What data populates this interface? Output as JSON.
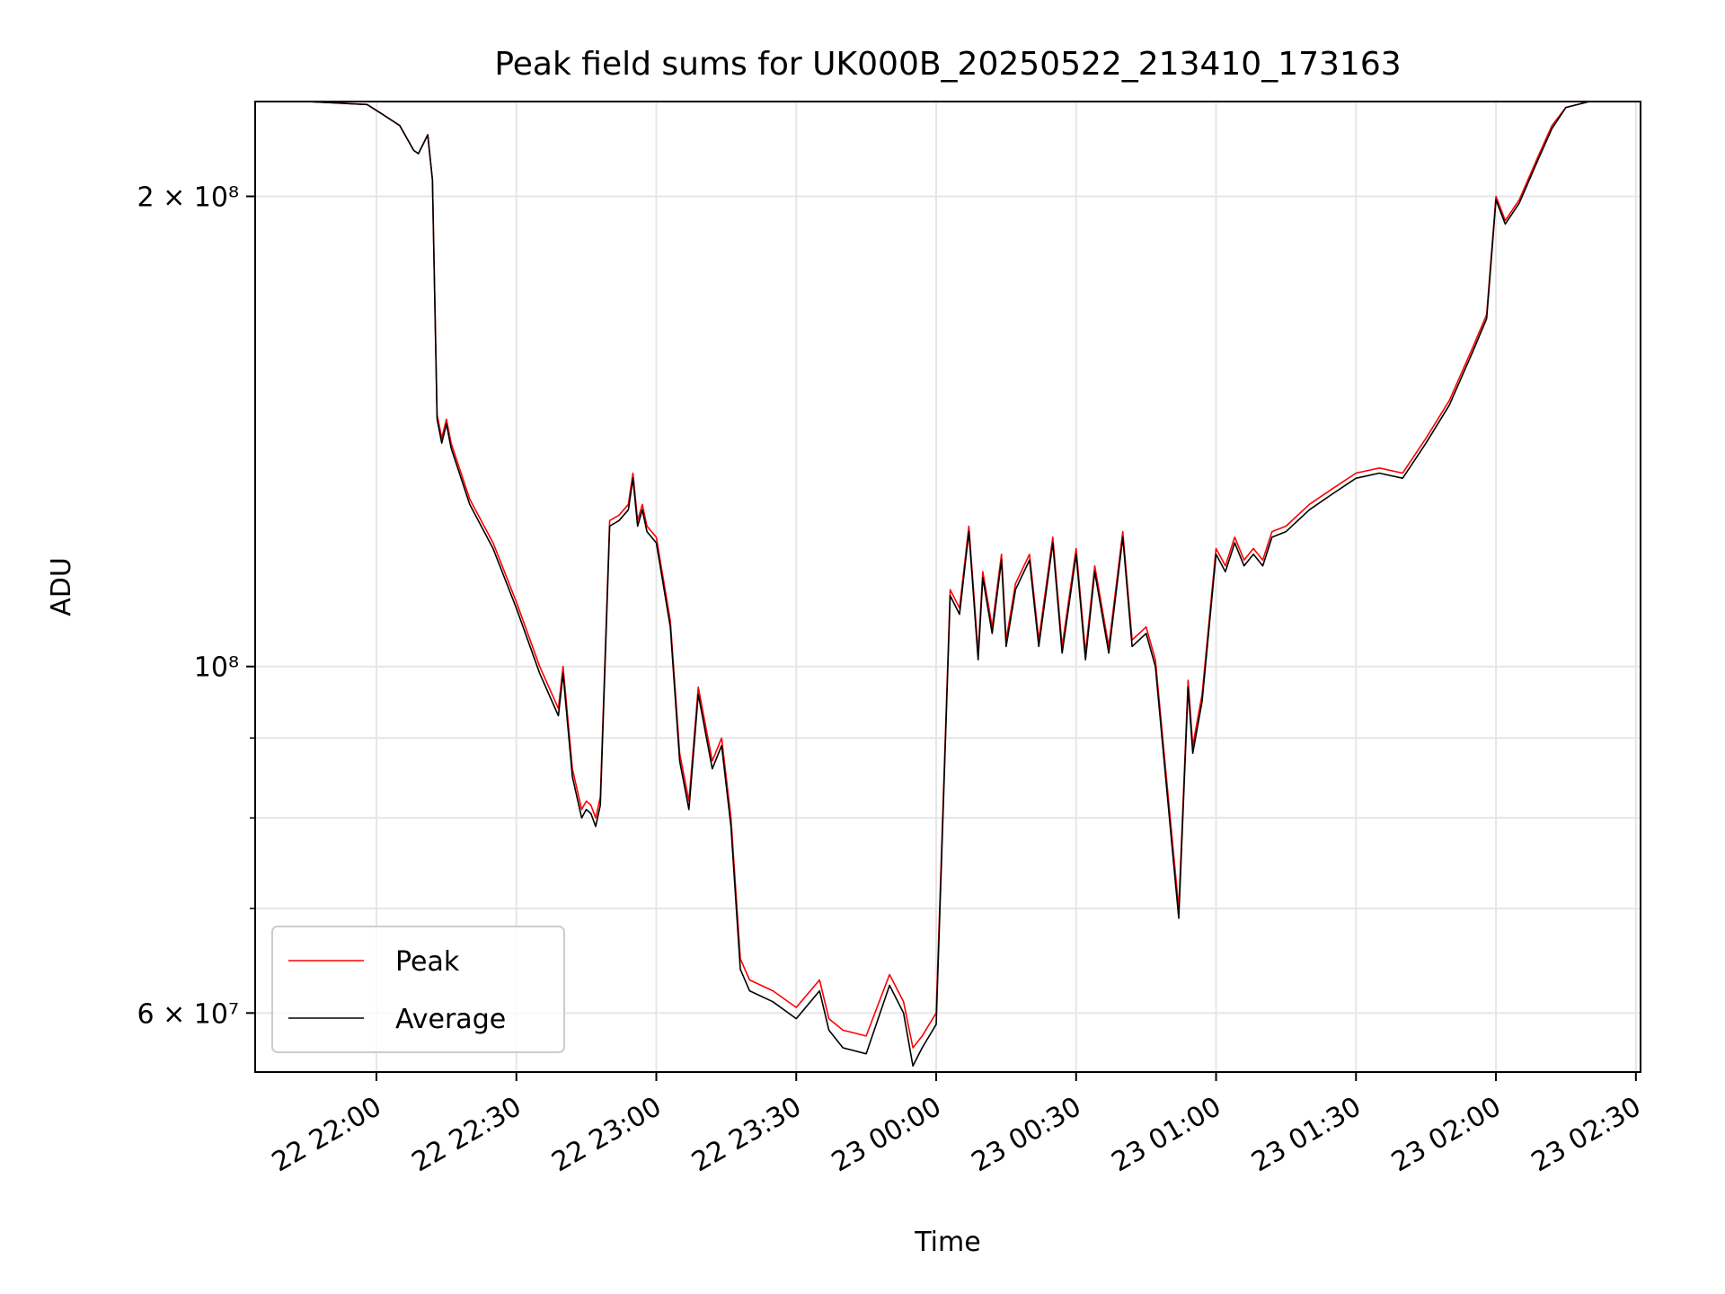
{
  "chart_data": {
    "type": "line",
    "title": "Peak field sums for UK000B_20250522_213410_173163",
    "xlabel": "Time",
    "ylabel": "ADU",
    "y_scale": "log",
    "ylim": [
      55000000,
      230000000
    ],
    "xlim": [
      "2025-05-22T21:34",
      "2025-05-23T02:31"
    ],
    "grid": true,
    "legend_position": "lower-left",
    "x_tick_labels": [
      "22 22:00",
      "22 22:30",
      "22 23:00",
      "22 23:30",
      "23 00:00",
      "23 00:30",
      "23 01:00",
      "23 01:30",
      "23 02:00",
      "23 02:30"
    ],
    "x_ticks": [
      "2025-05-22T22:00",
      "2025-05-22T22:30",
      "2025-05-22T23:00",
      "2025-05-22T23:30",
      "2025-05-23T00:00",
      "2025-05-23T00:30",
      "2025-05-23T01:00",
      "2025-05-23T01:30",
      "2025-05-23T02:00",
      "2025-05-23T02:30"
    ],
    "y_major_ticks": [
      {
        "value": 60000000,
        "label": "6 × 10⁷"
      },
      {
        "value": 100000000,
        "label": "10⁸"
      },
      {
        "value": 200000000,
        "label": "2 × 10⁸"
      }
    ],
    "y_minor_ticks": [
      70000000,
      80000000,
      90000000
    ],
    "series": [
      {
        "name": "Peak",
        "color": "#ff0000",
        "x": [
          "2025-05-22T21:34",
          "2025-05-22T21:45",
          "2025-05-22T21:58",
          "2025-05-22T22:01",
          "2025-05-22T22:05",
          "2025-05-22T22:08",
          "2025-05-22T22:09",
          "2025-05-22T22:11",
          "2025-05-22T22:12",
          "2025-05-22T22:13",
          "2025-05-22T22:14",
          "2025-05-22T22:15",
          "2025-05-22T22:16",
          "2025-05-22T22:20",
          "2025-05-22T22:25",
          "2025-05-22T22:30",
          "2025-05-22T22:35",
          "2025-05-22T22:39",
          "2025-05-22T22:40",
          "2025-05-22T22:42",
          "2025-05-22T22:44",
          "2025-05-22T22:45",
          "2025-05-22T22:46",
          "2025-05-22T22:47",
          "2025-05-22T22:48",
          "2025-05-22T22:50",
          "2025-05-22T22:52",
          "2025-05-22T22:54",
          "2025-05-22T22:55",
          "2025-05-22T22:56",
          "2025-05-22T22:57",
          "2025-05-22T22:58",
          "2025-05-22T23:00",
          "2025-05-22T23:03",
          "2025-05-22T23:05",
          "2025-05-22T23:07",
          "2025-05-22T23:09",
          "2025-05-22T23:12",
          "2025-05-22T23:14",
          "2025-05-22T23:16",
          "2025-05-22T23:18",
          "2025-05-22T23:20",
          "2025-05-22T23:25",
          "2025-05-22T23:30",
          "2025-05-22T23:35",
          "2025-05-22T23:37",
          "2025-05-22T23:40",
          "2025-05-22T23:45",
          "2025-05-22T23:50",
          "2025-05-22T23:53",
          "2025-05-22T23:55",
          "2025-05-22T23:57",
          "2025-05-23T00:00",
          "2025-05-23T00:03",
          "2025-05-23T00:05",
          "2025-05-23T00:07",
          "2025-05-23T00:09",
          "2025-05-23T00:10",
          "2025-05-23T00:12",
          "2025-05-23T00:14",
          "2025-05-23T00:15",
          "2025-05-23T00:17",
          "2025-05-23T00:20",
          "2025-05-23T00:22",
          "2025-05-23T00:25",
          "2025-05-23T00:27",
          "2025-05-23T00:30",
          "2025-05-23T00:32",
          "2025-05-23T00:34",
          "2025-05-23T00:37",
          "2025-05-23T00:40",
          "2025-05-23T00:42",
          "2025-05-23T00:45",
          "2025-05-23T00:47",
          "2025-05-23T00:50",
          "2025-05-23T00:52",
          "2025-05-23T00:54",
          "2025-05-23T00:55",
          "2025-05-23T00:57",
          "2025-05-23T01:00",
          "2025-05-23T01:02",
          "2025-05-23T01:04",
          "2025-05-23T01:06",
          "2025-05-23T01:08",
          "2025-05-23T01:10",
          "2025-05-23T01:12",
          "2025-05-23T01:15",
          "2025-05-23T01:20",
          "2025-05-23T01:25",
          "2025-05-23T01:30",
          "2025-05-23T01:35",
          "2025-05-23T01:40",
          "2025-05-23T01:45",
          "2025-05-23T01:50",
          "2025-05-23T01:55",
          "2025-05-23T01:58",
          "2025-05-23T02:00",
          "2025-05-23T02:02",
          "2025-05-23T02:05",
          "2025-05-23T02:09",
          "2025-05-23T02:12",
          "2025-05-23T02:15",
          "2025-05-23T02:20",
          "2025-05-23T02:25",
          "2025-05-23T02:31"
        ],
        "values": [
          230000000,
          230000000,
          229000000,
          226000000,
          222000000,
          214000000,
          213000000,
          219000000,
          205000000,
          145000000,
          140000000,
          144000000,
          139000000,
          128000000,
          120000000,
          110000000,
          100000000,
          94000000,
          100000000,
          86000000,
          81000000,
          82000000,
          81500000,
          80000000,
          82500000,
          124000000,
          125000000,
          127000000,
          133000000,
          124000000,
          127000000,
          123000000,
          121000000,
          107000000,
          88000000,
          82000000,
          97000000,
          87000000,
          90000000,
          80000000,
          65000000,
          63000000,
          62000000,
          60500000,
          63000000,
          59500000,
          58500000,
          58000000,
          63500000,
          61000000,
          57000000,
          58000000,
          60000000,
          112000000,
          109000000,
          123000000,
          102000000,
          115000000,
          106000000,
          118000000,
          104000000,
          113000000,
          118000000,
          104000000,
          121000000,
          103000000,
          119000000,
          102000000,
          116000000,
          103000000,
          122000000,
          104000000,
          106000000,
          101000000,
          81000000,
          70000000,
          98000000,
          89000000,
          96000000,
          119000000,
          116000000,
          121000000,
          117000000,
          119000000,
          117000000,
          122000000,
          123000000,
          127000000,
          130000000,
          133000000,
          134000000,
          133000000,
          140000000,
          148000000,
          160000000,
          168000000,
          200000000,
          193000000,
          199000000,
          212000000,
          222000000,
          228000000,
          230000000,
          230000000,
          230000000
        ]
      },
      {
        "name": "Average",
        "color": "#000000",
        "x": [
          "2025-05-22T21:34",
          "2025-05-22T21:45",
          "2025-05-22T21:58",
          "2025-05-22T22:01",
          "2025-05-22T22:05",
          "2025-05-22T22:08",
          "2025-05-22T22:09",
          "2025-05-22T22:11",
          "2025-05-22T22:12",
          "2025-05-22T22:13",
          "2025-05-22T22:14",
          "2025-05-22T22:15",
          "2025-05-22T22:16",
          "2025-05-22T22:20",
          "2025-05-22T22:25",
          "2025-05-22T22:30",
          "2025-05-22T22:35",
          "2025-05-22T22:39",
          "2025-05-22T22:40",
          "2025-05-22T22:42",
          "2025-05-22T22:44",
          "2025-05-22T22:45",
          "2025-05-22T22:46",
          "2025-05-22T22:47",
          "2025-05-22T22:48",
          "2025-05-22T22:50",
          "2025-05-22T22:52",
          "2025-05-22T22:54",
          "2025-05-22T22:55",
          "2025-05-22T22:56",
          "2025-05-22T22:57",
          "2025-05-22T22:58",
          "2025-05-22T23:00",
          "2025-05-22T23:03",
          "2025-05-22T23:05",
          "2025-05-22T23:07",
          "2025-05-22T23:09",
          "2025-05-22T23:12",
          "2025-05-22T23:14",
          "2025-05-22T23:16",
          "2025-05-22T23:18",
          "2025-05-22T23:20",
          "2025-05-22T23:25",
          "2025-05-22T23:30",
          "2025-05-22T23:35",
          "2025-05-22T23:37",
          "2025-05-22T23:40",
          "2025-05-22T23:45",
          "2025-05-22T23:50",
          "2025-05-22T23:53",
          "2025-05-22T23:55",
          "2025-05-22T23:57",
          "2025-05-23T00:00",
          "2025-05-23T00:03",
          "2025-05-23T00:05",
          "2025-05-23T00:07",
          "2025-05-23T00:09",
          "2025-05-23T00:10",
          "2025-05-23T00:12",
          "2025-05-23T00:14",
          "2025-05-23T00:15",
          "2025-05-23T00:17",
          "2025-05-23T00:20",
          "2025-05-23T00:22",
          "2025-05-23T00:25",
          "2025-05-23T00:27",
          "2025-05-23T00:30",
          "2025-05-23T00:32",
          "2025-05-23T00:34",
          "2025-05-23T00:37",
          "2025-05-23T00:40",
          "2025-05-23T00:42",
          "2025-05-23T00:45",
          "2025-05-23T00:47",
          "2025-05-23T00:50",
          "2025-05-23T00:52",
          "2025-05-23T00:54",
          "2025-05-23T00:55",
          "2025-05-23T00:57",
          "2025-05-23T01:00",
          "2025-05-23T01:02",
          "2025-05-23T01:04",
          "2025-05-23T01:06",
          "2025-05-23T01:08",
          "2025-05-23T01:10",
          "2025-05-23T01:12",
          "2025-05-23T01:15",
          "2025-05-23T01:20",
          "2025-05-23T01:25",
          "2025-05-23T01:30",
          "2025-05-23T01:35",
          "2025-05-23T01:40",
          "2025-05-23T01:45",
          "2025-05-23T01:50",
          "2025-05-23T01:55",
          "2025-05-23T01:58",
          "2025-05-23T02:00",
          "2025-05-23T02:02",
          "2025-05-23T02:05",
          "2025-05-23T02:09",
          "2025-05-23T02:12",
          "2025-05-23T02:15",
          "2025-05-23T02:20",
          "2025-05-23T02:25",
          "2025-05-23T02:31"
        ],
        "values": [
          230000000,
          230000000,
          229000000,
          226000000,
          222000000,
          214000000,
          213000000,
          219000000,
          205000000,
          144000000,
          139000000,
          143000000,
          138000000,
          127000000,
          119000000,
          109000000,
          99000000,
          93000000,
          99000000,
          85000000,
          80000000,
          81000000,
          80500000,
          79000000,
          81500000,
          123000000,
          124000000,
          126000000,
          132000000,
          123000000,
          126000000,
          122000000,
          120000000,
          106000000,
          87000000,
          81000000,
          96000000,
          86000000,
          89000000,
          79000000,
          64000000,
          62000000,
          61000000,
          59500000,
          62000000,
          58500000,
          57000000,
          56500000,
          62500000,
          60000000,
          55500000,
          57000000,
          59000000,
          111000000,
          108000000,
          122000000,
          101000000,
          114000000,
          105000000,
          117000000,
          103000000,
          112000000,
          117000000,
          103000000,
          120000000,
          102000000,
          118000000,
          101000000,
          115000000,
          102000000,
          121000000,
          103000000,
          105000000,
          100000000,
          80000000,
          69000000,
          97000000,
          88000000,
          95000000,
          118000000,
          115000000,
          120000000,
          116000000,
          118000000,
          116000000,
          121000000,
          122000000,
          126000000,
          129000000,
          132000000,
          133000000,
          132000000,
          139000000,
          147000000,
          159000000,
          167000000,
          199000000,
          192000000,
          198000000,
          211000000,
          221000000,
          228000000,
          230000000,
          230000000,
          230000000
        ]
      }
    ]
  }
}
